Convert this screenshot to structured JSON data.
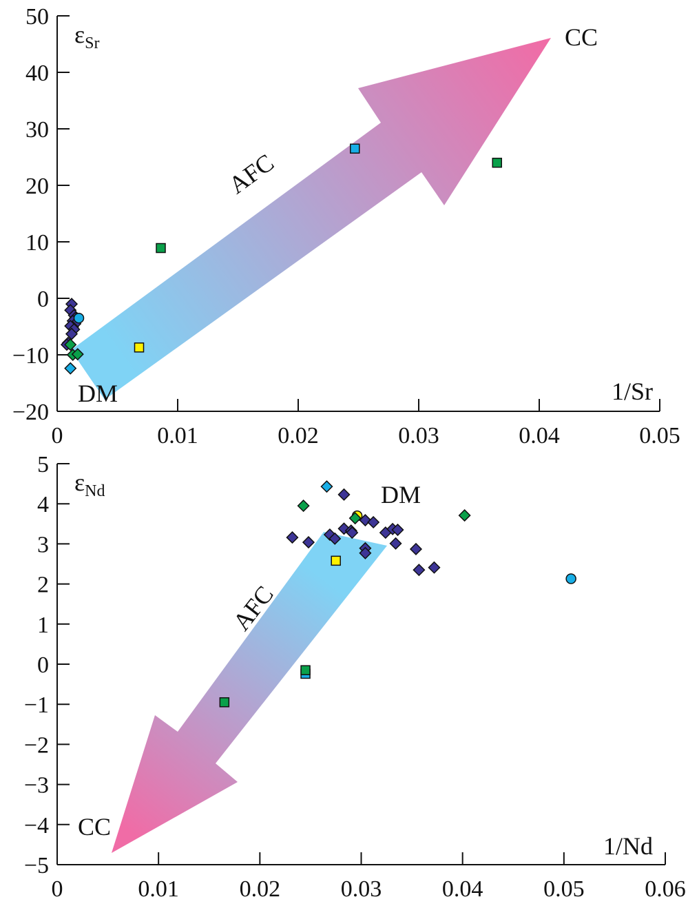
{
  "chart_data": [
    {
      "type": "scatter",
      "ylabel": "εSr",
      "xlabel": "1/Sr",
      "xlim": [
        0,
        0.05
      ],
      "ylim": [
        -20,
        50
      ],
      "xticks": [
        "0",
        "0.01",
        "0.02",
        "0.03",
        "0.04",
        "0.05"
      ],
      "yticks": [
        "50",
        "40",
        "30",
        "20",
        "10",
        "0",
        "−10",
        "−20"
      ],
      "annotations": {
        "dm": "DM",
        "cc": "CC",
        "afc": "AFC"
      },
      "colors": {
        "purple": "#3d3596",
        "green": "#0aa04a",
        "cyan": "#18aee6",
        "yellow": "#fff200",
        "arrow_start": "#7fd3f5",
        "arrow_end": "#f06ca6",
        "dm": "#1f5fae",
        "cc": "#e31e24"
      },
      "series": [
        {
          "marker": "diamond",
          "color": "purple",
          "points": [
            [
              0.0012,
              -1.0
            ],
            [
              0.0011,
              -2.1
            ],
            [
              0.0014,
              -3.0
            ],
            [
              0.0015,
              -3.5
            ],
            [
              0.0013,
              -4.0
            ],
            [
              0.0015,
              -4.5
            ],
            [
              0.0013,
              -5.1
            ],
            [
              0.0011,
              -4.9
            ],
            [
              0.0014,
              -5.5
            ],
            [
              0.0012,
              -6.3
            ],
            [
              0.0009,
              -7.9
            ],
            [
              0.0008,
              -8.2
            ]
          ]
        },
        {
          "marker": "circle",
          "color": "cyan",
          "points": [
            [
              0.0018,
              -3.5
            ]
          ]
        },
        {
          "marker": "diamond",
          "color": "green",
          "points": [
            [
              0.0011,
              -8.2
            ],
            [
              0.0013,
              -10.0
            ],
            [
              0.0017,
              -9.9
            ]
          ]
        },
        {
          "marker": "diamond",
          "color": "cyan",
          "points": [
            [
              0.0011,
              -12.4
            ]
          ]
        },
        {
          "marker": "square",
          "color": "yellow",
          "points": [
            [
              0.0068,
              -8.7
            ]
          ]
        },
        {
          "marker": "square",
          "color": "green",
          "points": [
            [
              0.0086,
              8.9
            ],
            [
              0.0365,
              24.0
            ]
          ]
        },
        {
          "marker": "square",
          "color": "cyan",
          "points": [
            [
              0.0247,
              26.5
            ]
          ]
        }
      ]
    },
    {
      "type": "scatter",
      "ylabel": "εNd",
      "xlabel": "1/Nd",
      "xlim": [
        0,
        0.06
      ],
      "ylim": [
        -5,
        5
      ],
      "xticks": [
        "0",
        "0.01",
        "0.02",
        "0.03",
        "0.04",
        "0.05",
        "0.06"
      ],
      "yticks": [
        "5",
        "4",
        "3",
        "2",
        "1",
        "0",
        "−1",
        "−2",
        "−3",
        "−4",
        "−5"
      ],
      "annotations": {
        "dm": "DM",
        "cc": "CC",
        "afc": "AFC"
      },
      "colors": {
        "purple": "#3d3596",
        "green": "#0aa04a",
        "cyan": "#18aee6",
        "yellow": "#fff200",
        "arrow_start": "#7fd3f5",
        "arrow_end": "#f06ca6",
        "dm": "#1f5fae",
        "cc": "#e31e24"
      },
      "series": [
        {
          "marker": "square",
          "color": "cyan",
          "points": [
            [
              0.0245,
              -0.24
            ]
          ]
        },
        {
          "marker": "square",
          "color": "green",
          "points": [
            [
              0.0245,
              -0.15
            ],
            [
              0.0165,
              -0.95
            ]
          ]
        },
        {
          "marker": "circle",
          "color": "yellow",
          "points": [
            [
              0.0296,
              3.7
            ]
          ]
        },
        {
          "marker": "diamond",
          "color": "purple",
          "points": [
            [
              0.0283,
              4.23
            ],
            [
              0.0304,
              3.59
            ],
            [
              0.0312,
              3.54
            ],
            [
              0.0283,
              3.38
            ],
            [
              0.029,
              3.33
            ],
            [
              0.0291,
              3.28
            ],
            [
              0.0269,
              3.23
            ],
            [
              0.0274,
              3.13
            ],
            [
              0.0232,
              3.16
            ],
            [
              0.0248,
              3.04
            ],
            [
              0.0324,
              3.28
            ],
            [
              0.0331,
              3.37
            ],
            [
              0.0336,
              3.35
            ],
            [
              0.0334,
              3.01
            ],
            [
              0.0304,
              2.89
            ],
            [
              0.0304,
              2.77
            ],
            [
              0.0354,
              2.87
            ],
            [
              0.0357,
              2.35
            ],
            [
              0.0372,
              2.41
            ]
          ]
        },
        {
          "marker": "diamond",
          "color": "cyan",
          "points": [
            [
              0.0266,
              4.43
            ]
          ]
        },
        {
          "marker": "diamond",
          "color": "green",
          "points": [
            [
              0.0243,
              3.95
            ],
            [
              0.0402,
              3.71
            ],
            [
              0.0294,
              3.64
            ]
          ]
        },
        {
          "marker": "square",
          "color": "yellow",
          "points": [
            [
              0.0275,
              2.58
            ]
          ]
        },
        {
          "marker": "circle",
          "color": "cyan",
          "points": [
            [
              0.0507,
              2.13
            ]
          ]
        }
      ]
    }
  ]
}
